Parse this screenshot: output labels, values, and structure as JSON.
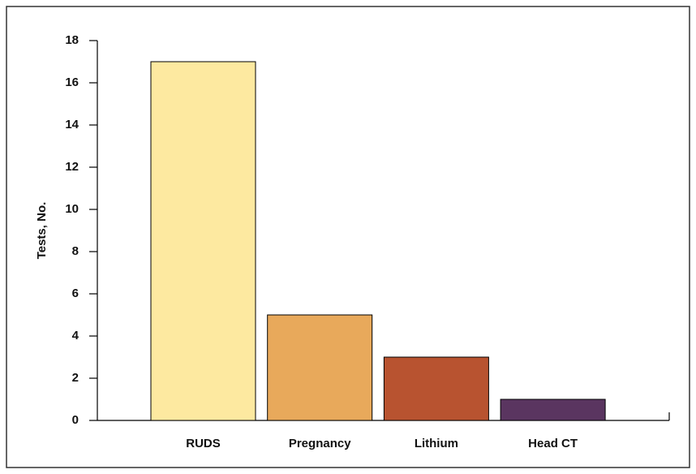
{
  "chart_data": {
    "type": "bar",
    "y_label": "Tests, No.",
    "categories": [
      "RUDS",
      "Pregnancy",
      "Lithium",
      "Head CT"
    ],
    "values": [
      17,
      5,
      3,
      1
    ],
    "colors": [
      "#fde9a0",
      "#e8a95b",
      "#b85330",
      "#5a3560"
    ],
    "ylim": [
      0,
      18
    ],
    "yticks": [
      0,
      2,
      4,
      6,
      8,
      10,
      12,
      14,
      16,
      18
    ]
  }
}
